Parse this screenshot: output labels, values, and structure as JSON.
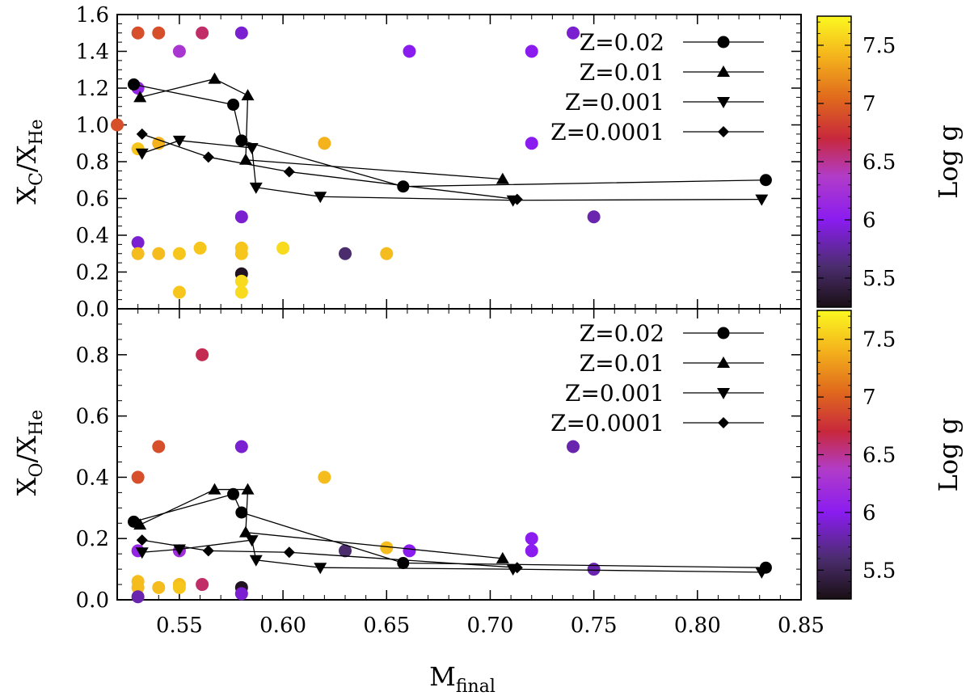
{
  "chart_data": [
    {
      "panel": "top",
      "type": "scatter",
      "x_label": "M",
      "x_label_sub": "final",
      "y_label_main": "X",
      "y_label_sub1": "C",
      "y_label_sep": "/X",
      "y_label_sub2": "He",
      "xlim": [
        0.52,
        0.85
      ],
      "ylim": [
        0.0,
        1.6
      ],
      "x_ticks": [
        "0.55",
        "0.60",
        "0.65",
        "0.70",
        "0.75",
        "0.80",
        "0.85"
      ],
      "y_ticks": [
        "0.0",
        "0.2",
        "0.4",
        "0.6",
        "0.8",
        "1.0",
        "1.2",
        "1.4",
        "1.6"
      ],
      "colorbar": {
        "label": "Log g",
        "range": [
          5.25,
          7.75
        ],
        "ticks": [
          "5.5",
          "6",
          "6.5",
          "7",
          "7.5"
        ]
      },
      "legend_position": "top-right",
      "series": [
        {
          "name": "Z=0.02",
          "marker": "circle",
          "x": [
            0.528,
            0.576,
            0.58,
            0.658,
            0.833
          ],
          "y": [
            1.22,
            1.11,
            0.915,
            0.665,
            0.7
          ]
        },
        {
          "name": "Z=0.01",
          "marker": "triangle-up",
          "x": [
            0.531,
            0.567,
            0.583,
            0.582,
            0.706
          ],
          "y": [
            1.15,
            1.25,
            1.16,
            0.81,
            0.705
          ]
        },
        {
          "name": "Z=0.001",
          "marker": "triangle-down",
          "x": [
            0.532,
            0.55,
            0.585,
            0.587,
            0.618,
            0.711,
            0.831
          ],
          "y": [
            0.845,
            0.915,
            0.875,
            0.66,
            0.61,
            0.59,
            0.595
          ]
        },
        {
          "name": "Z=0.0001",
          "marker": "diamond",
          "x": [
            0.532,
            0.564,
            0.603,
            0.713
          ],
          "y": [
            0.95,
            0.825,
            0.745,
            0.595
          ]
        }
      ],
      "observed_points": [
        {
          "x": 0.53,
          "y": 1.5,
          "logg": 6.9
        },
        {
          "x": 0.54,
          "y": 1.5,
          "logg": 6.9
        },
        {
          "x": 0.561,
          "y": 1.5,
          "logg": 6.6
        },
        {
          "x": 0.58,
          "y": 1.5,
          "logg": 5.9
        },
        {
          "x": 0.74,
          "y": 1.5,
          "logg": 5.9
        },
        {
          "x": 0.55,
          "y": 1.4,
          "logg": 6.3
        },
        {
          "x": 0.661,
          "y": 1.4,
          "logg": 6.0
        },
        {
          "x": 0.72,
          "y": 1.4,
          "logg": 6.0
        },
        {
          "x": 0.53,
          "y": 1.2,
          "logg": 6.1
        },
        {
          "x": 0.52,
          "y": 1.0,
          "logg": 6.9
        },
        {
          "x": 0.53,
          "y": 0.87,
          "logg": 7.5
        },
        {
          "x": 0.54,
          "y": 0.9,
          "logg": 7.4
        },
        {
          "x": 0.62,
          "y": 0.9,
          "logg": 7.4
        },
        {
          "x": 0.72,
          "y": 0.9,
          "logg": 6.0
        },
        {
          "x": 0.58,
          "y": 0.5,
          "logg": 5.9
        },
        {
          "x": 0.75,
          "y": 0.5,
          "logg": 5.8
        },
        {
          "x": 0.53,
          "y": 0.36,
          "logg": 5.9
        },
        {
          "x": 0.53,
          "y": 0.3,
          "logg": 7.45
        },
        {
          "x": 0.54,
          "y": 0.3,
          "logg": 7.45
        },
        {
          "x": 0.55,
          "y": 0.3,
          "logg": 7.5
        },
        {
          "x": 0.56,
          "y": 0.33,
          "logg": 7.5
        },
        {
          "x": 0.58,
          "y": 0.33,
          "logg": 7.5
        },
        {
          "x": 0.58,
          "y": 0.3,
          "logg": 7.5
        },
        {
          "x": 0.6,
          "y": 0.33,
          "logg": 7.6
        },
        {
          "x": 0.63,
          "y": 0.3,
          "logg": 5.6
        },
        {
          "x": 0.65,
          "y": 0.3,
          "logg": 7.45
        },
        {
          "x": 0.58,
          "y": 0.19,
          "logg": 5.3
        },
        {
          "x": 0.58,
          "y": 0.15,
          "logg": 7.6
        },
        {
          "x": 0.55,
          "y": 0.09,
          "logg": 7.5
        },
        {
          "x": 0.58,
          "y": 0.09,
          "logg": 7.6
        }
      ]
    },
    {
      "panel": "bottom",
      "type": "scatter",
      "x_label": "M",
      "x_label_sub": "final",
      "y_label_main": "X",
      "y_label_sub1": "O",
      "y_label_sep": "/X",
      "y_label_sub2": "He",
      "xlim": [
        0.52,
        0.85
      ],
      "ylim": [
        0.0,
        0.95
      ],
      "x_ticks": [
        "0.55",
        "0.60",
        "0.65",
        "0.70",
        "0.75",
        "0.80",
        "0.85"
      ],
      "y_ticks": [
        "0.0",
        "0.2",
        "0.4",
        "0.6",
        "0.8"
      ],
      "colorbar": {
        "label": "Log g",
        "range": [
          5.25,
          7.75
        ],
        "ticks": [
          "5.5",
          "6",
          "6.5",
          "7",
          "7.5"
        ]
      },
      "legend_position": "top-right",
      "series": [
        {
          "name": "Z=0.02",
          "marker": "circle",
          "x": [
            0.528,
            0.576,
            0.58,
            0.658,
            0.833
          ],
          "y": [
            0.255,
            0.345,
            0.285,
            0.12,
            0.105
          ]
        },
        {
          "name": "Z=0.01",
          "marker": "triangle-up",
          "x": [
            0.531,
            0.567,
            0.583,
            0.582,
            0.706
          ],
          "y": [
            0.245,
            0.36,
            0.36,
            0.22,
            0.135
          ]
        },
        {
          "name": "Z=0.001",
          "marker": "triangle-down",
          "x": [
            0.532,
            0.55,
            0.585,
            0.587,
            0.618,
            0.711,
            0.831
          ],
          "y": [
            0.155,
            0.165,
            0.195,
            0.13,
            0.105,
            0.1,
            0.09
          ]
        },
        {
          "name": "Z=0.0001",
          "marker": "diamond",
          "x": [
            0.532,
            0.564,
            0.603,
            0.713
          ],
          "y": [
            0.195,
            0.16,
            0.155,
            0.105
          ]
        }
      ],
      "observed_points": [
        {
          "x": 0.561,
          "y": 0.8,
          "logg": 6.65
        },
        {
          "x": 0.54,
          "y": 0.5,
          "logg": 6.9
        },
        {
          "x": 0.58,
          "y": 0.5,
          "logg": 5.9
        },
        {
          "x": 0.74,
          "y": 0.5,
          "logg": 5.8
        },
        {
          "x": 0.53,
          "y": 0.4,
          "logg": 6.9
        },
        {
          "x": 0.62,
          "y": 0.4,
          "logg": 7.45
        },
        {
          "x": 0.72,
          "y": 0.2,
          "logg": 6.0
        },
        {
          "x": 0.53,
          "y": 0.16,
          "logg": 6.1
        },
        {
          "x": 0.55,
          "y": 0.16,
          "logg": 6.2
        },
        {
          "x": 0.63,
          "y": 0.16,
          "logg": 5.6
        },
        {
          "x": 0.65,
          "y": 0.17,
          "logg": 7.45
        },
        {
          "x": 0.661,
          "y": 0.16,
          "logg": 6.0
        },
        {
          "x": 0.72,
          "y": 0.16,
          "logg": 6.0
        },
        {
          "x": 0.75,
          "y": 0.1,
          "logg": 5.8
        },
        {
          "x": 0.53,
          "y": 0.06,
          "logg": 7.45
        },
        {
          "x": 0.53,
          "y": 0.04,
          "logg": 7.45
        },
        {
          "x": 0.54,
          "y": 0.04,
          "logg": 7.45
        },
        {
          "x": 0.55,
          "y": 0.05,
          "logg": 7.45
        },
        {
          "x": 0.55,
          "y": 0.04,
          "logg": 7.5
        },
        {
          "x": 0.561,
          "y": 0.05,
          "logg": 6.6
        },
        {
          "x": 0.58,
          "y": 0.04,
          "logg": 5.3
        },
        {
          "x": 0.53,
          "y": 0.01,
          "logg": 5.8
        },
        {
          "x": 0.58,
          "y": 0.02,
          "logg": 5.9
        }
      ]
    }
  ]
}
